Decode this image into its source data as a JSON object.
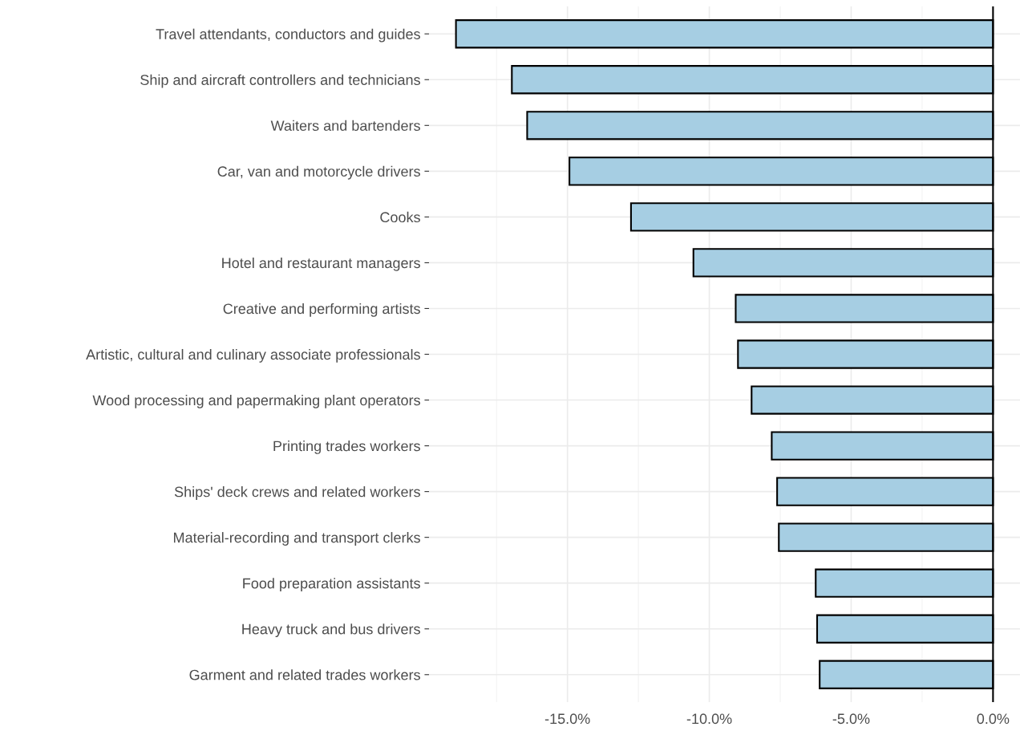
{
  "chart_data": {
    "type": "bar",
    "orientation": "horizontal",
    "categories": [
      "Travel attendants, conductors and guides",
      "Ship and aircraft controllers and technicians",
      "Waiters and bartenders",
      "Car, van and motorcycle drivers",
      "Cooks",
      "Hotel and restaurant managers",
      "Creative and performing artists",
      "Artistic, cultural and culinary associate professionals",
      "Wood processing and papermaking plant operators",
      "Printing trades workers",
      "Ships' deck crews and related workers",
      "Material-recording and transport clerks",
      "Food preparation assistants",
      "Heavy truck and bus drivers",
      "Garment and related trades workers"
    ],
    "values": [
      -18.93,
      -16.96,
      -16.42,
      -14.93,
      -12.76,
      -10.56,
      -9.07,
      -8.99,
      -8.51,
      -7.8,
      -7.61,
      -7.55,
      -6.25,
      -6.2,
      -6.11
    ],
    "color": "#a6cee3",
    "xlim": [
      -19.88,
      0.95
    ],
    "xticks": [
      {
        "value": -15,
        "label": "-15.0%"
      },
      {
        "value": -10,
        "label": "-10.0%"
      },
      {
        "value": -5,
        "label": "-5.0%"
      },
      {
        "value": 0,
        "label": "0.0%"
      }
    ],
    "ref_lines": [
      {
        "axis": "x",
        "value": 0,
        "color": "#000000"
      }
    ],
    "grid": true
  }
}
